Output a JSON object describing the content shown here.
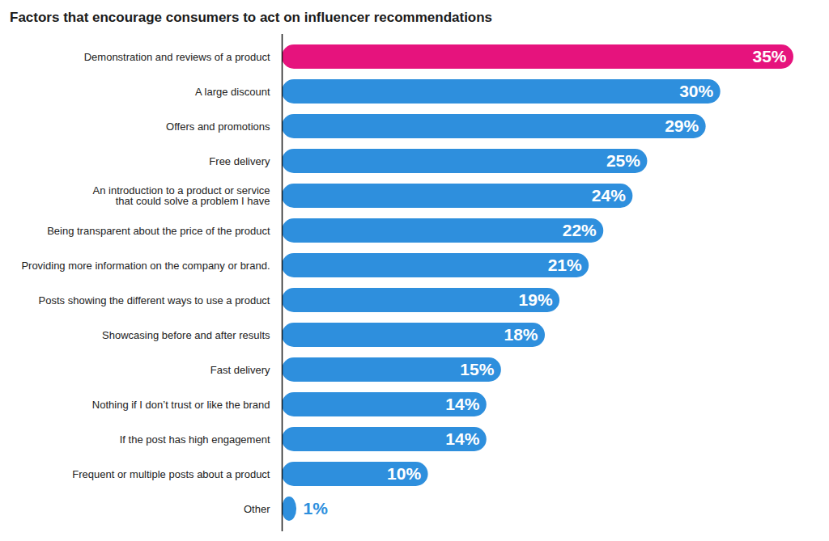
{
  "chart_data": {
    "type": "bar",
    "orientation": "horizontal",
    "title": "Factors that encourage consumers to act on influencer recommendations",
    "categories": [
      "Demonstration and reviews of a product",
      "A large discount",
      "Offers and promotions",
      "Free delivery",
      "An introduction to a product or service\nthat could solve a problem I have",
      "Being transparent about the price of the product",
      "Providing more information on the company or brand.",
      "Posts showing the different ways to use a product",
      "Showcasing before and after results",
      "Fast delivery",
      "Nothing if I don’t trust or like the brand",
      "If the post has high engagement",
      "Frequent or multiple posts about a product",
      "Other"
    ],
    "values": [
      35,
      30,
      29,
      25,
      24,
      22,
      21,
      19,
      18,
      15,
      14,
      14,
      10,
      1
    ],
    "value_labels": [
      "35%",
      "30%",
      "29%",
      "25%",
      "24%",
      "22%",
      "21%",
      "19%",
      "18%",
      "15%",
      "14%",
      "14%",
      "10%",
      "1%"
    ],
    "colors": [
      "#e6137d",
      "#2e8fdd",
      "#2e8fdd",
      "#2e8fdd",
      "#2e8fdd",
      "#2e8fdd",
      "#2e8fdd",
      "#2e8fdd",
      "#2e8fdd",
      "#2e8fdd",
      "#2e8fdd",
      "#2e8fdd",
      "#2e8fdd",
      "#2e8fdd"
    ],
    "data_labels": true,
    "tick_labels": "y",
    "grid": false
  }
}
